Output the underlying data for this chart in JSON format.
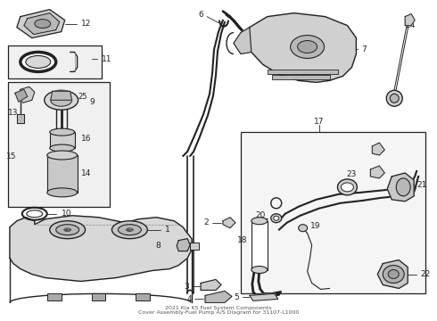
{
  "title": "2021 Kia K5 Fuel System Components\nCover Assembly-Fuel Pump A/S Diagram for 31107-L1000",
  "bg_color": "#ffffff",
  "lc": "#222222",
  "gray": "#888888",
  "lgray": "#cccccc",
  "dgray": "#555555"
}
